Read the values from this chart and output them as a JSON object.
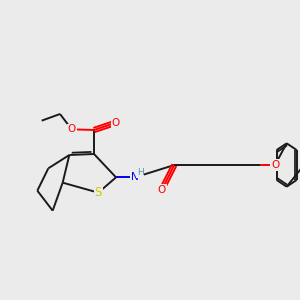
{
  "background_color": "#ebebeb",
  "bond_color": "#1a1a1a",
  "atom_colors": {
    "O": "#ff0000",
    "N": "#0000ee",
    "S": "#cccc00",
    "H": "#5599aa",
    "C": "#1a1a1a"
  },
  "figsize": [
    3.0,
    3.0
  ],
  "dpi": 100,
  "lw": 1.4,
  "fs": 7.5
}
